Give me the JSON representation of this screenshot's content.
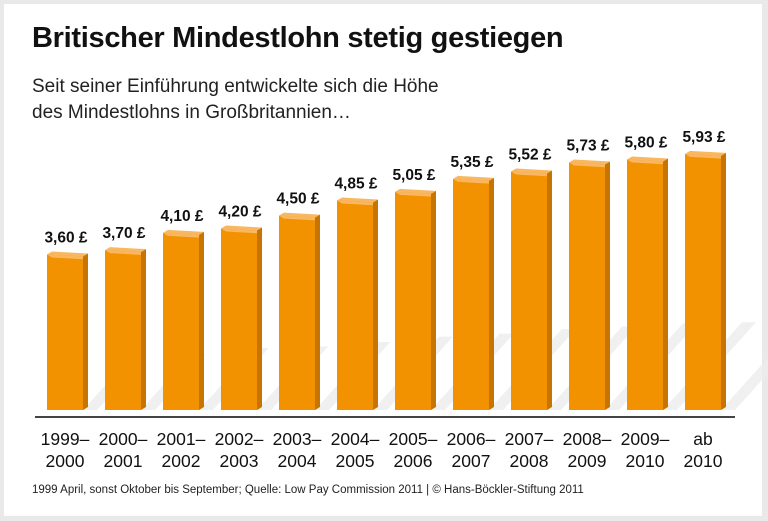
{
  "title": "Britischer Mindestlohn stetig gestiegen",
  "subtitle_lines": [
    "Seit seiner Einführung entwickelte sich die Höhe",
    "des Mindestlohns in Großbritannien…"
  ],
  "footer": "1999 April, sonst Oktober bis September; Quelle: Low Pay Commission 2011 | © Hans-Böckler-Stiftung 2011",
  "colors": {
    "bar_front": "#f39200",
    "bar_top": "#f8b760",
    "bar_side": "#c87400",
    "axis": "#444444"
  },
  "chart_data": {
    "type": "bar",
    "title": "Britischer Mindestlohn stetig gestiegen",
    "categories": [
      [
        "1999–",
        "2000"
      ],
      [
        "2000–",
        "2001"
      ],
      [
        "2001–",
        "2002"
      ],
      [
        "2002–",
        "2003"
      ],
      [
        "2003–",
        "2004"
      ],
      [
        "2004–",
        "2005"
      ],
      [
        "2005–",
        "2006"
      ],
      [
        "2006–",
        "2007"
      ],
      [
        "2007–",
        "2008"
      ],
      [
        "2008–",
        "2009"
      ],
      [
        "2009–",
        "2010"
      ],
      [
        "ab",
        "2010"
      ]
    ],
    "values": [
      3.6,
      3.7,
      4.1,
      4.2,
      4.5,
      4.85,
      5.05,
      5.35,
      5.52,
      5.73,
      5.8,
      5.93
    ],
    "value_labels": [
      "3,60 £",
      "3,70 £",
      "4,10 £",
      "4,20 £",
      "4,50 £",
      "4,85 £",
      "5,05 £",
      "5,35 £",
      "5,52 £",
      "5,73 £",
      "5,80 £",
      "5,93 £"
    ],
    "unit": "£",
    "ylim": [
      0,
      7
    ],
    "grid": false,
    "style": "3d-bars"
  }
}
